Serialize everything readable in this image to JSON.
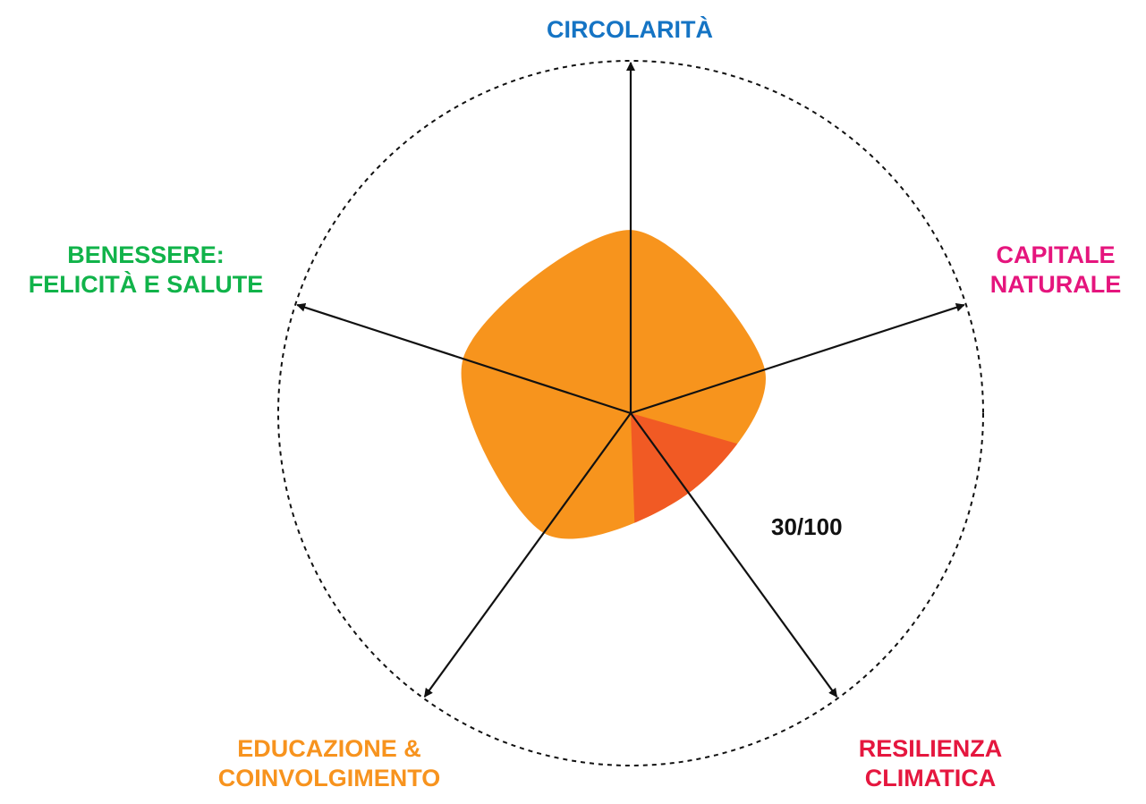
{
  "chart_data": {
    "type": "radar",
    "axes": [
      {
        "key": "circolarita",
        "lines": [
          "CIRCOLARITÀ"
        ],
        "color": "#1574c4",
        "value": 0.52
      },
      {
        "key": "capitale",
        "lines": [
          "CAPITALE",
          "NATURALE"
        ],
        "color": "#e5157d",
        "value": 0.4
      },
      {
        "key": "resilienza",
        "lines": [
          "RESILIENZA",
          "CLIMATICA"
        ],
        "color": "#e5173f",
        "value": 0.28
      },
      {
        "key": "educazione",
        "lines": [
          "EDUCAZIONE &",
          "COINVOLGIMENTO"
        ],
        "color": "#f7931e",
        "value": 0.42
      },
      {
        "key": "benessere",
        "lines": [
          "BENESSERE:",
          "FELICITÀ E SALUTE"
        ],
        "color": "#11b34a",
        "value": 0.5
      }
    ],
    "score": "30/100",
    "colors": {
      "fill": "#f7941d",
      "highlight": "#f15a24",
      "axis": "#111111",
      "circle": "#111111"
    },
    "range": [
      0,
      1
    ]
  }
}
